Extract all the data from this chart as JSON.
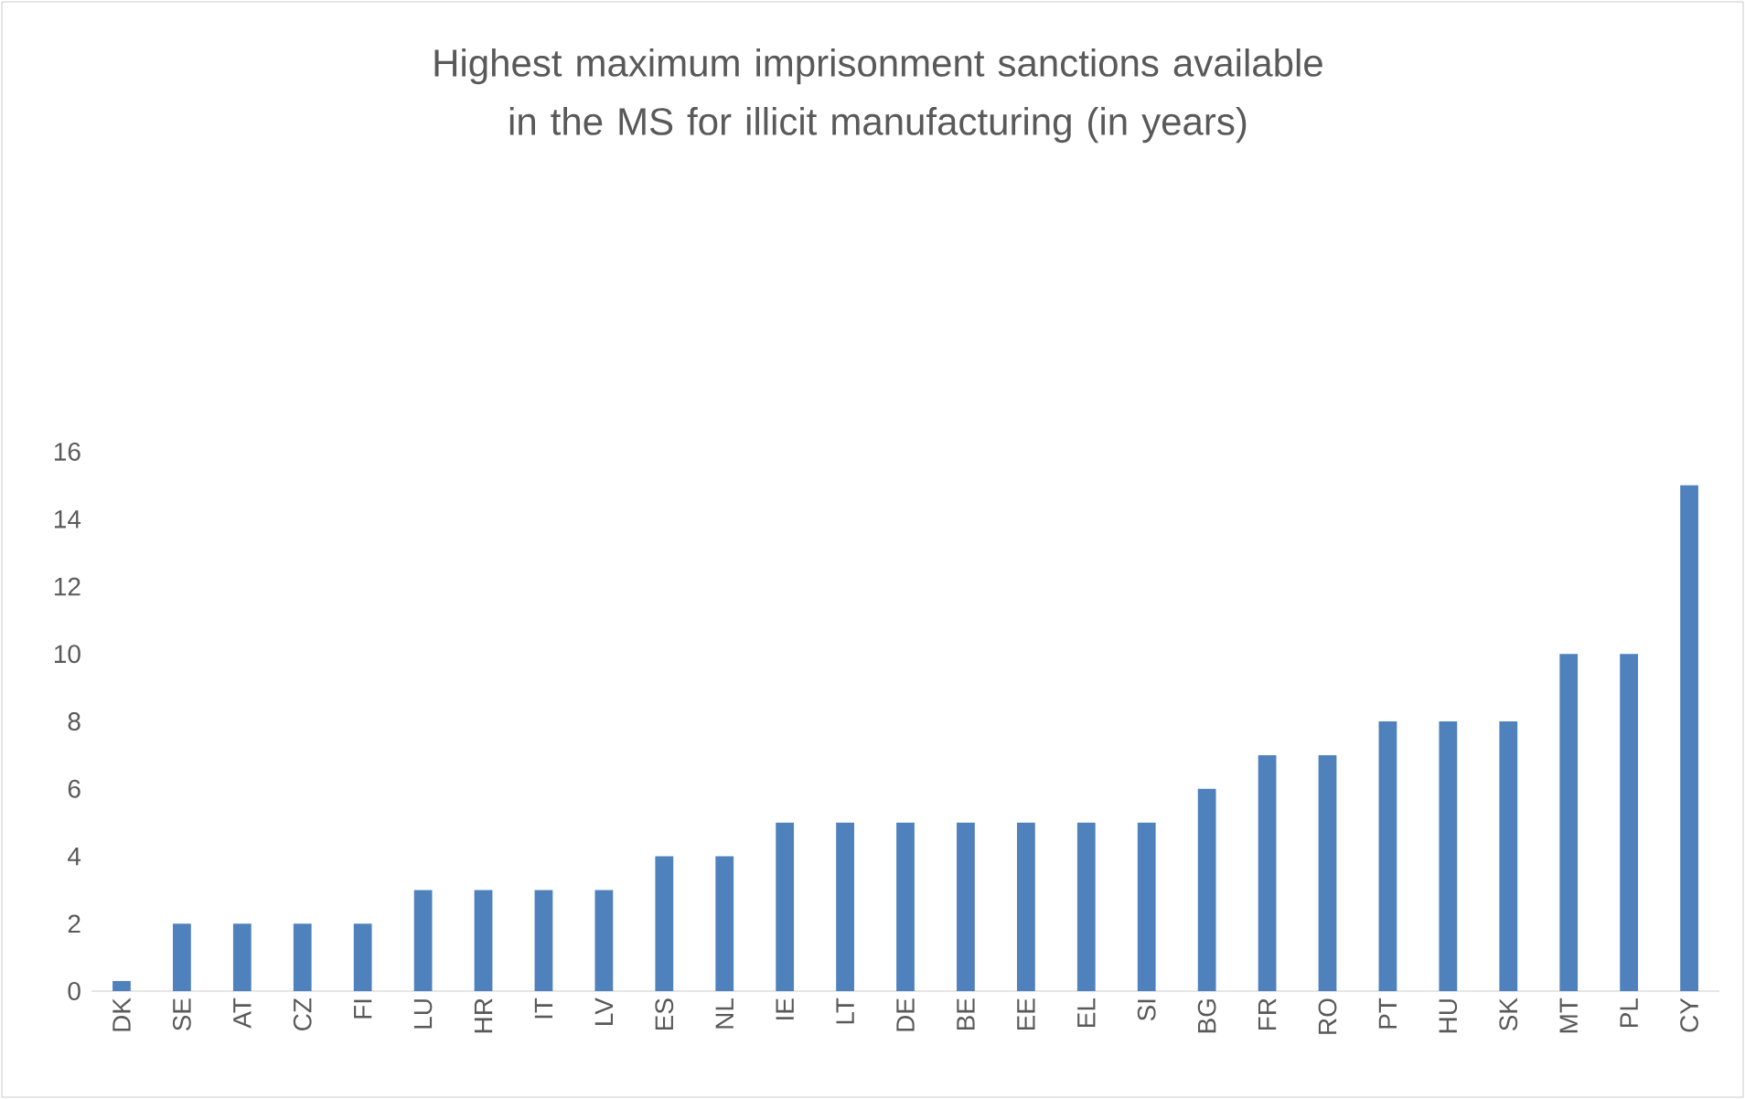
{
  "chart_data": {
    "type": "bar",
    "title": "Highest maximum imprisonment sanctions available in the MS for illicit manufacturing (in years)",
    "categories": [
      "DK",
      "SE",
      "AT",
      "CZ",
      "FI",
      "LU",
      "HR",
      "IT",
      "LV",
      "ES",
      "NL",
      "IE",
      "LT",
      "DE",
      "BE",
      "EE",
      "EL",
      "SI",
      "BG",
      "FR",
      "RO",
      "PT",
      "HU",
      "SK",
      "MT",
      "PL",
      "CY"
    ],
    "values": [
      0.3,
      2,
      2,
      2,
      2,
      3,
      3,
      3,
      3,
      4,
      4,
      5,
      5,
      5,
      5,
      5,
      5,
      5,
      6,
      7,
      7,
      8,
      8,
      8,
      10,
      10,
      15
    ],
    "color": "#4f81bd",
    "ylim": [
      0,
      16
    ],
    "yticks": [
      0,
      2,
      4,
      6,
      8,
      10,
      12,
      14,
      16
    ]
  }
}
